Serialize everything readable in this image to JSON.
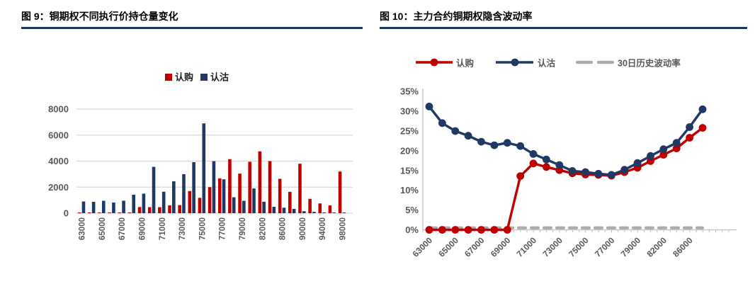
{
  "figure1": {
    "title": "图 9：铜期权不同执行价持仓量变化",
    "chart_data": {
      "type": "bar",
      "title": "铜期权不同执行价持仓量变化",
      "categories": [
        63000,
        64000,
        65000,
        66000,
        67000,
        68000,
        69000,
        70000,
        71000,
        72000,
        73000,
        74000,
        75000,
        76000,
        77000,
        78000,
        79000,
        80000,
        82000,
        84000,
        86000,
        88000,
        90000,
        92000,
        94000,
        96000,
        98000
      ],
      "x_tick_labels": [
        "63000",
        "65000",
        "67000",
        "69000",
        "71000",
        "73000",
        "75000",
        "77000",
        "79000",
        "82000",
        "86000",
        "90000",
        "94000",
        "98000"
      ],
      "label_every": 2,
      "y_ticks": [
        "0",
        "2000",
        "4000",
        "6000",
        "8000"
      ],
      "ylim": [
        0,
        8000
      ],
      "grid": "horizontal",
      "legend_position": "top",
      "series": [
        {
          "name": "认购",
          "color": "#C00000",
          "values": [
            30,
            30,
            50,
            30,
            40,
            60,
            470,
            460,
            460,
            600,
            620,
            1700,
            1180,
            2000,
            2670,
            4150,
            3040,
            3950,
            4750,
            4000,
            2640,
            1640,
            3800,
            1100,
            750,
            600,
            3200
          ]
        },
        {
          "name": "认沽",
          "color": "#1F3864",
          "values": [
            900,
            870,
            950,
            820,
            960,
            1420,
            1500,
            3560,
            1650,
            2450,
            3000,
            3920,
            6900,
            4000,
            2600,
            1220,
            950,
            1900,
            880,
            490,
            420,
            330,
            150,
            100,
            50,
            40,
            30
          ]
        }
      ]
    }
  },
  "figure2": {
    "title": "图 10：主力合约铜期权隐含波动率",
    "chart_data": {
      "type": "line",
      "title": "主力合约铜期权隐含波动率",
      "categories": [
        63000,
        64000,
        65000,
        66000,
        67000,
        68000,
        69000,
        70000,
        71000,
        72000,
        73000,
        74000,
        75000,
        76000,
        77000,
        78000,
        79000,
        80000,
        82000,
        84000,
        86000,
        88000
      ],
      "x_tick_labels": [
        "63000",
        "65000",
        "67000",
        "69000",
        "71000",
        "73000",
        "75000",
        "77000",
        "79000",
        "82000",
        "86000"
      ],
      "label_every": 2,
      "y_ticks": [
        "0%",
        "5%",
        "10%",
        "15%",
        "20%",
        "25%",
        "30%",
        "35%"
      ],
      "ylim": [
        0,
        35
      ],
      "y_unit": "%",
      "grid": "off",
      "legend_position": "top",
      "series": [
        {
          "name": "认购",
          "color": "#C00000",
          "marker": "circle",
          "line": "solid",
          "values": [
            0,
            0,
            0,
            0,
            0,
            0,
            0,
            13.6,
            16.8,
            15.9,
            15.1,
            14.3,
            14.0,
            13.9,
            13.7,
            14.6,
            15.7,
            17.4,
            19.0,
            20.6,
            23.3,
            25.8
          ]
        },
        {
          "name": "认沽",
          "color": "#1F3864",
          "marker": "circle",
          "line": "solid",
          "values": [
            31.2,
            27.0,
            25.0,
            23.8,
            22.3,
            21.4,
            22.0,
            21.2,
            19.2,
            17.8,
            16.4,
            14.9,
            14.6,
            14.2,
            13.9,
            15.2,
            16.9,
            18.7,
            20.4,
            22.0,
            26.0,
            30.5
          ]
        },
        {
          "name": "30日历史波动率",
          "color": "#ABABAB",
          "marker": "none",
          "line": "dashed",
          "values": [
            0.5,
            0.5,
            0.5,
            0.5,
            0.5,
            0.5,
            0.5,
            0.5,
            0.5,
            0.5,
            0.5,
            0.5,
            0.5,
            0.5,
            0.5,
            0.5,
            0.5,
            0.5,
            0.5,
            0.5,
            0.5,
            0.5
          ]
        }
      ]
    }
  },
  "colors": {
    "accent_red": "#C00000",
    "accent_navy": "#1F3864",
    "historical_vol_gray": "#ABABAB",
    "title_rule": "#17375E",
    "axis_text": "#595959",
    "gridline": "#D9D9D9",
    "background": "#FFFFFF"
  }
}
